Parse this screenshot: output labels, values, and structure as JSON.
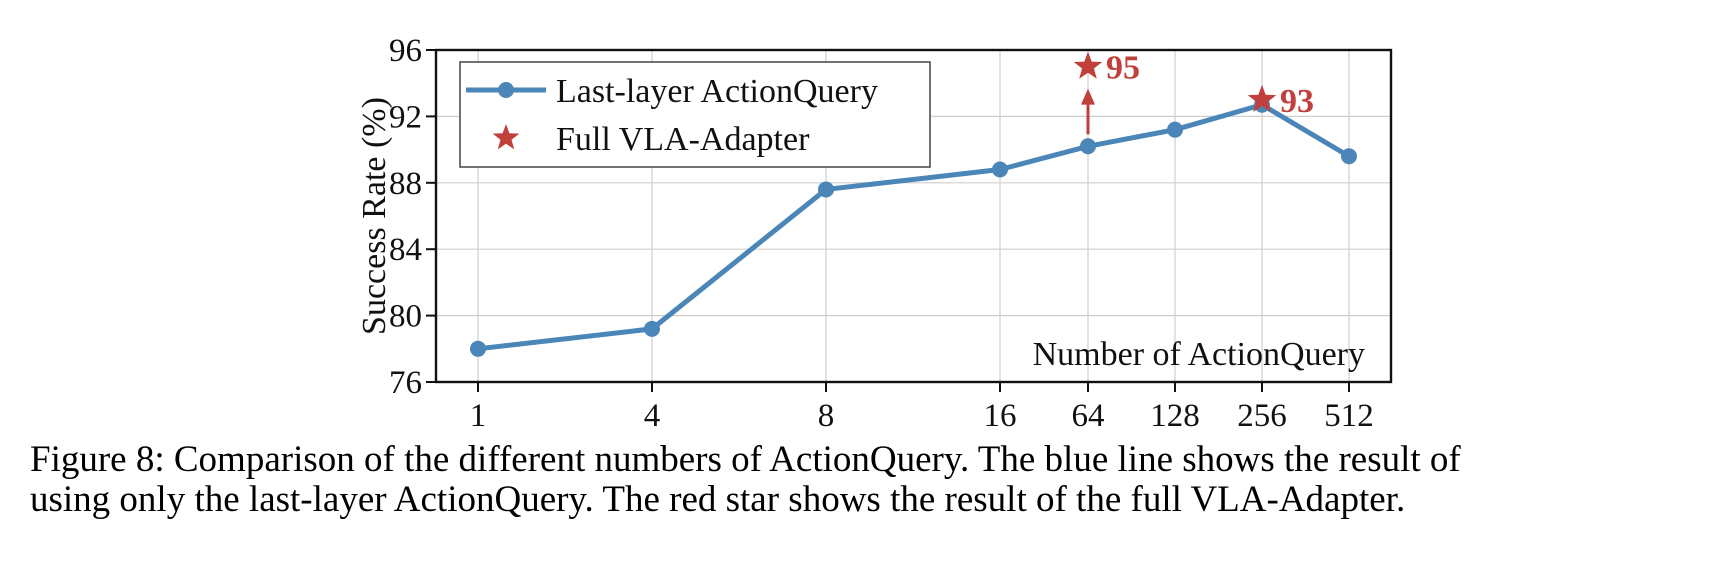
{
  "chart_data": {
    "type": "line",
    "title": "",
    "xlabel": "Number of ActionQuery",
    "ylabel": "Success Rate (%)",
    "ylim": [
      76,
      96
    ],
    "yticks": [
      "76",
      "80",
      "84",
      "88",
      "92",
      "96"
    ],
    "x_scale": "categorical",
    "categories": [
      "1",
      "4",
      "8",
      "16",
      "64",
      "128",
      "256",
      "512"
    ],
    "grid": true,
    "legend_position": "top-left",
    "series": [
      {
        "name": "Last-layer ActionQuery",
        "kind": "line-marker",
        "color": "#4a86b8",
        "values": [
          78.0,
          79.2,
          87.6,
          88.8,
          90.2,
          91.2,
          92.7,
          89.6
        ]
      },
      {
        "name": "Full VLA-Adapter",
        "kind": "star",
        "color": "#c0413b",
        "points": [
          {
            "x": "64",
            "y": 95,
            "label": "95"
          },
          {
            "x": "256",
            "y": 93,
            "label": "93"
          }
        ]
      }
    ],
    "annotations": [
      {
        "type": "arrow",
        "x": "64",
        "from": 90.2,
        "to": 95,
        "color": "#c0413b"
      }
    ]
  },
  "caption": {
    "line1": "Figure 8: Comparison of the different numbers of ActionQuery.  The blue line shows the result of",
    "line2": "using only the last-layer ActionQuery. The red star shows the result of the full VLA-Adapter."
  }
}
